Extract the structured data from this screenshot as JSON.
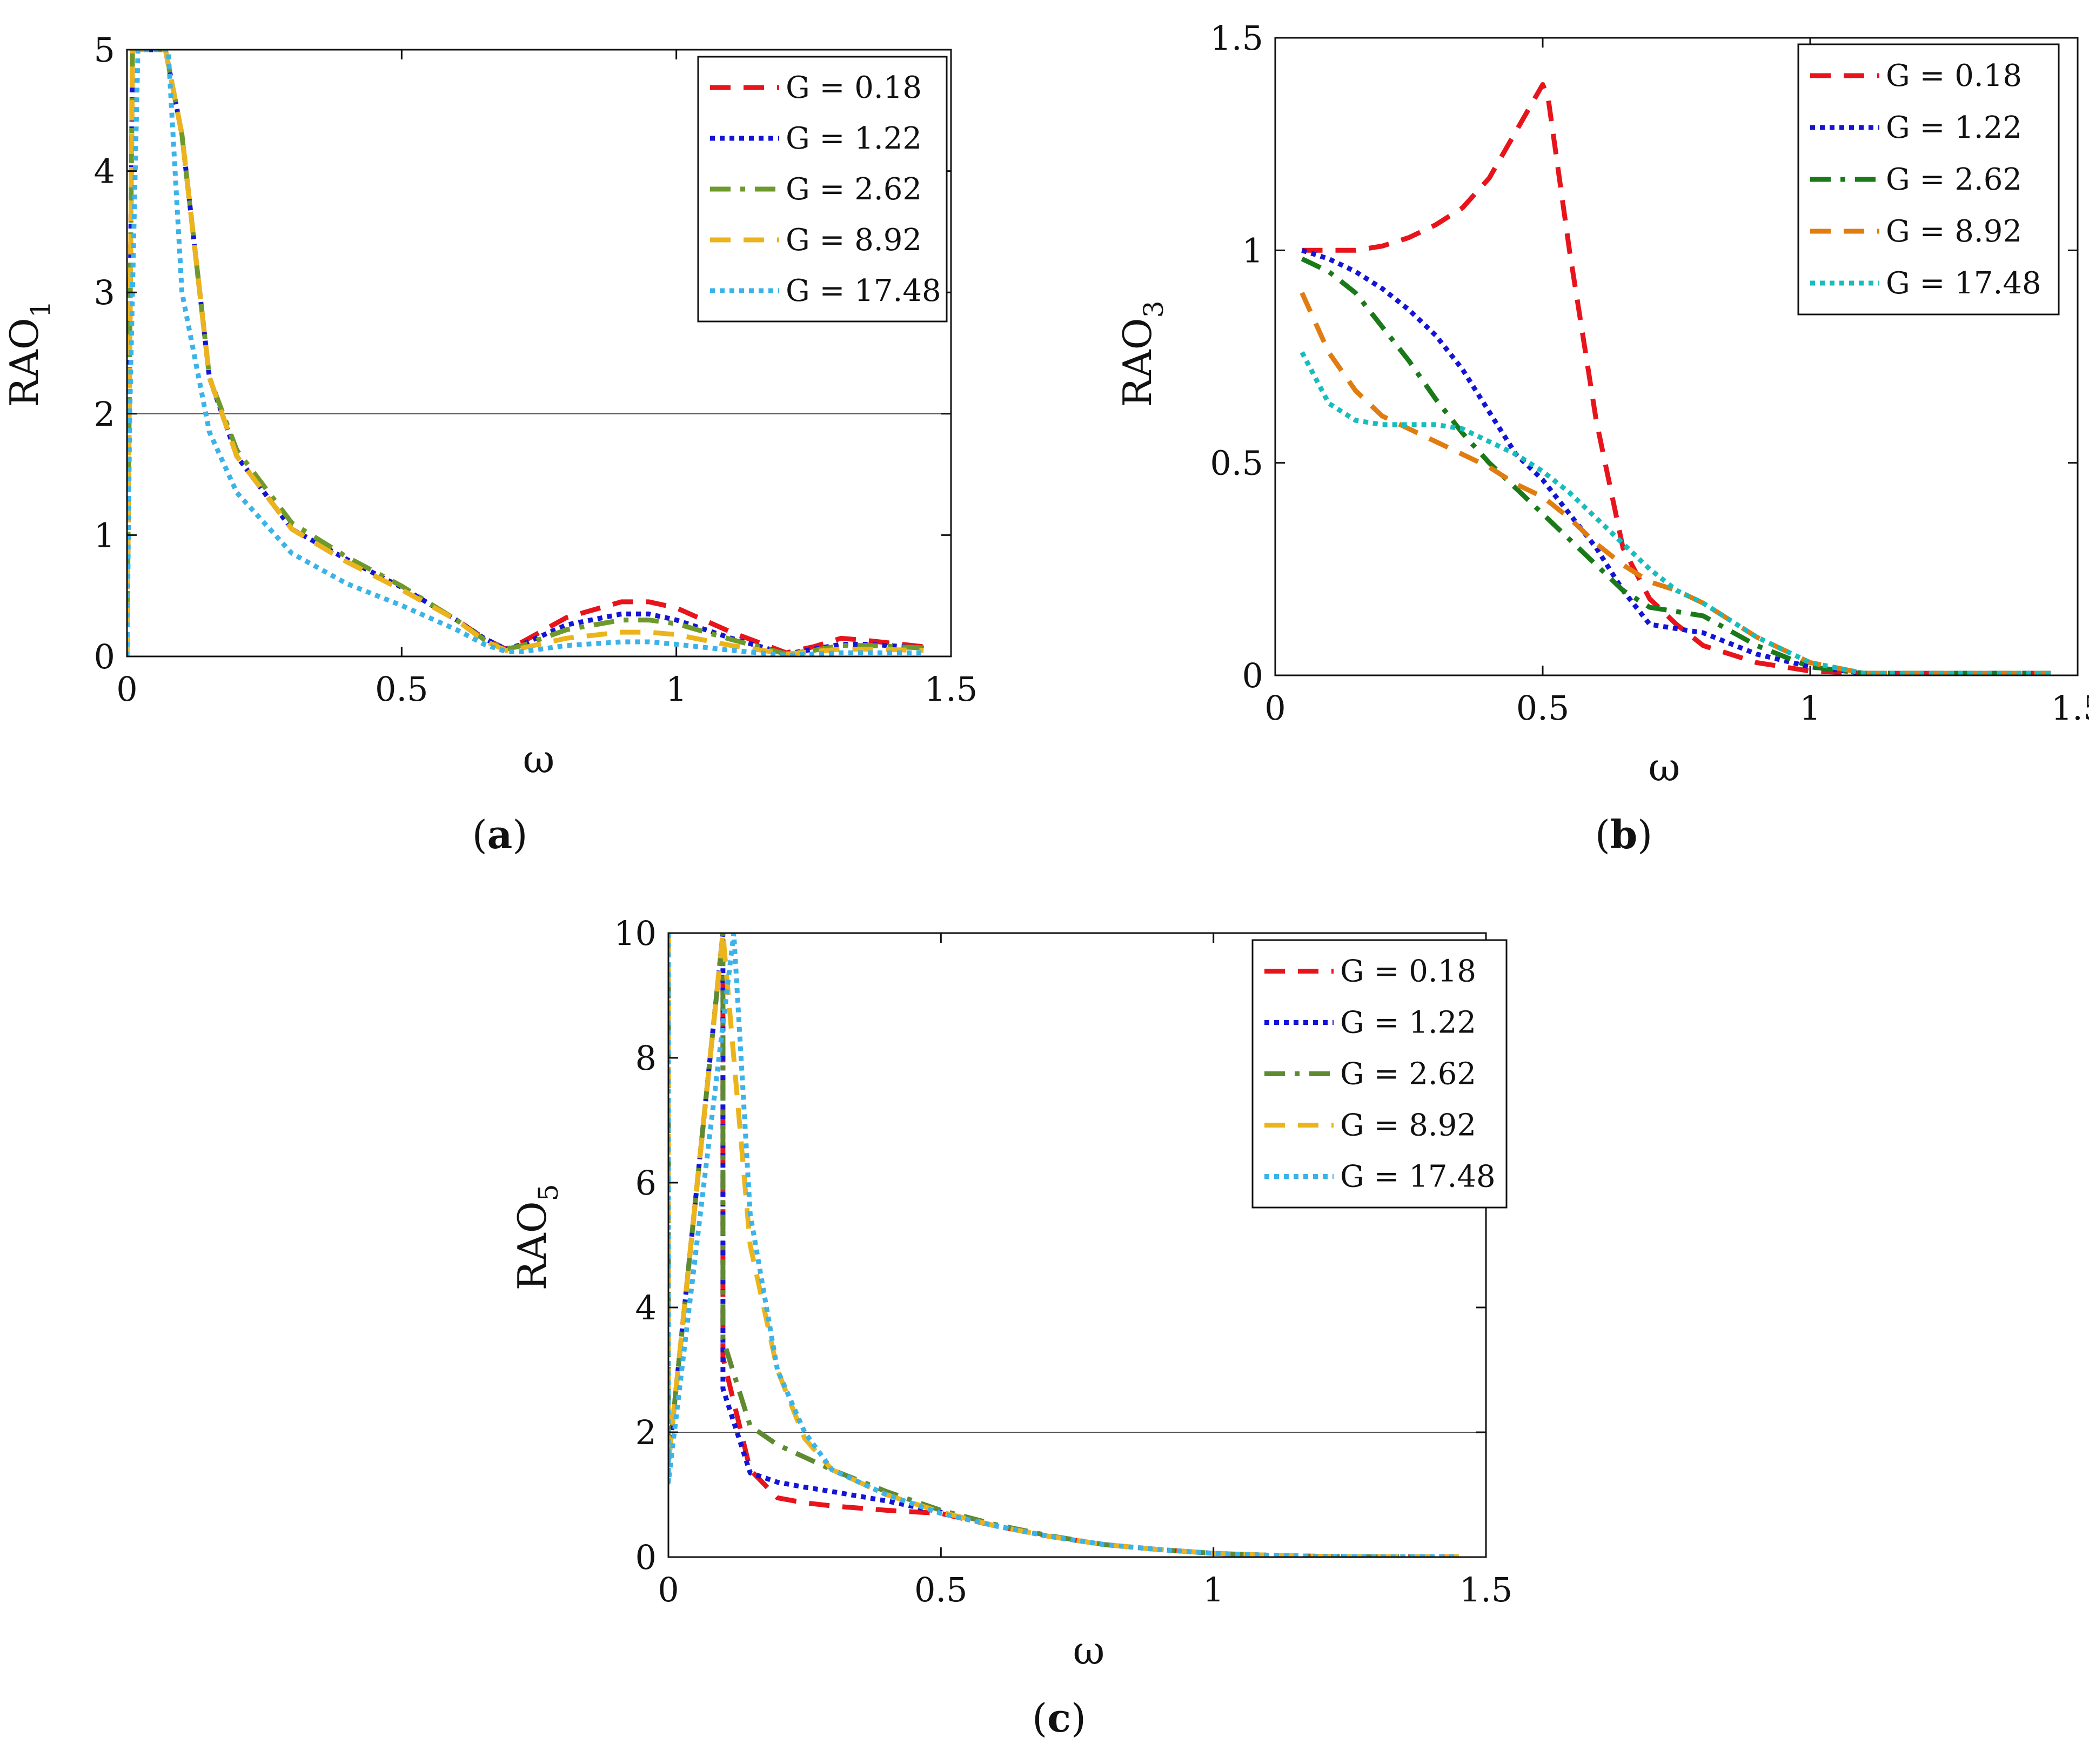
{
  "chart_data": [
    {
      "id": "a",
      "type": "line",
      "caption_letter": "a",
      "xlabel": "ω",
      "ylabel_main": "RAO",
      "ylabel_sub": "1",
      "xlim": [
        0,
        1.5
      ],
      "ylim": [
        0,
        5
      ],
      "xticks": [
        "0",
        "0.5",
        "1",
        "1.5"
      ],
      "xtick_values": [
        0,
        0.5,
        1,
        1.5
      ],
      "yticks": [
        "0",
        "1",
        "2",
        "3",
        "4",
        "5"
      ],
      "ytick_values": [
        0,
        1,
        2,
        3,
        4,
        5
      ],
      "hline": 2,
      "legend_position": "top-right",
      "series": [
        {
          "name": "G = 0.18",
          "color": "#e8141c",
          "dash": "dash",
          "x": [
            0,
            0.005,
            0.01,
            0.07,
            0.1,
            0.15,
            0.2,
            0.3,
            0.4,
            0.5,
            0.6,
            0.65,
            0.69,
            0.72,
            0.8,
            0.9,
            0.95,
            1.0,
            1.1,
            1.2,
            1.25,
            1.3,
            1.35,
            1.45
          ],
          "y": [
            0,
            2.5,
            5,
            5,
            4.3,
            2.3,
            1.65,
            1.05,
            0.78,
            0.55,
            0.3,
            0.15,
            0.06,
            0.12,
            0.32,
            0.45,
            0.45,
            0.4,
            0.2,
            0.03,
            0.08,
            0.15,
            0.13,
            0.08
          ]
        },
        {
          "name": "G = 1.22",
          "color": "#1414d6",
          "dash": "dot",
          "x": [
            0,
            0.005,
            0.01,
            0.07,
            0.1,
            0.15,
            0.2,
            0.3,
            0.4,
            0.5,
            0.6,
            0.65,
            0.69,
            0.72,
            0.8,
            0.9,
            0.95,
            1.0,
            1.1,
            1.2,
            1.25,
            1.3,
            1.35,
            1.45
          ],
          "y": [
            0,
            2.5,
            5,
            5,
            4.3,
            2.3,
            1.65,
            1.05,
            0.8,
            0.57,
            0.3,
            0.15,
            0.06,
            0.1,
            0.26,
            0.35,
            0.35,
            0.3,
            0.15,
            0.02,
            0.06,
            0.1,
            0.1,
            0.07
          ]
        },
        {
          "name": "G = 2.62",
          "color": "#6e9a2b",
          "dash": "dashdot",
          "x": [
            0,
            0.005,
            0.01,
            0.07,
            0.1,
            0.15,
            0.2,
            0.3,
            0.4,
            0.5,
            0.6,
            0.65,
            0.69,
            0.72,
            0.8,
            0.9,
            0.95,
            1.0,
            1.1,
            1.2,
            1.25,
            1.3,
            1.35,
            1.45
          ],
          "y": [
            0,
            2.5,
            5,
            5,
            4.3,
            2.3,
            1.7,
            1.1,
            0.82,
            0.58,
            0.3,
            0.14,
            0.06,
            0.09,
            0.22,
            0.3,
            0.3,
            0.27,
            0.14,
            0.02,
            0.05,
            0.09,
            0.09,
            0.07
          ]
        },
        {
          "name": "G = 8.92",
          "color": "#ecb41c",
          "dash": "dash",
          "x": [
            0,
            0.005,
            0.01,
            0.07,
            0.1,
            0.15,
            0.2,
            0.3,
            0.4,
            0.5,
            0.6,
            0.65,
            0.69,
            0.72,
            0.8,
            0.9,
            0.95,
            1.0,
            1.1,
            1.2,
            1.25,
            1.3,
            1.35,
            1.45
          ],
          "y": [
            0,
            2.5,
            5,
            5,
            4.3,
            2.3,
            1.65,
            1.05,
            0.78,
            0.55,
            0.3,
            0.13,
            0.05,
            0.07,
            0.15,
            0.2,
            0.2,
            0.18,
            0.09,
            0.02,
            0.04,
            0.06,
            0.06,
            0.05
          ]
        },
        {
          "name": "G = 17.48",
          "color": "#3bb3e8",
          "dash": "dot",
          "x": [
            0,
            0.005,
            0.02,
            0.055,
            0.075,
            0.1,
            0.15,
            0.2,
            0.3,
            0.4,
            0.5,
            0.6,
            0.65,
            0.69,
            0.72,
            0.8,
            0.9,
            0.95,
            1.0,
            1.1,
            1.2,
            1.25,
            1.3,
            1.35,
            1.45
          ],
          "y": [
            0,
            2.0,
            5,
            5,
            5,
            3.0,
            1.85,
            1.35,
            0.85,
            0.6,
            0.42,
            0.22,
            0.1,
            0.04,
            0.04,
            0.09,
            0.12,
            0.12,
            0.1,
            0.05,
            0.01,
            0.02,
            0.03,
            0.03,
            0.03
          ]
        }
      ]
    },
    {
      "id": "b",
      "type": "line",
      "caption_letter": "b",
      "xlabel": "ω",
      "ylabel_main": "RAO",
      "ylabel_sub": "3",
      "xlim": [
        0,
        1.5
      ],
      "ylim": [
        0,
        1.5
      ],
      "xticks": [
        "0",
        "0.5",
        "1",
        "1.5"
      ],
      "xtick_values": [
        0,
        0.5,
        1,
        1.5
      ],
      "yticks": [
        "0",
        "0.5",
        "1",
        "1.5"
      ],
      "ytick_values": [
        0,
        0.5,
        1,
        1.5
      ],
      "legend_position": "top-right",
      "series": [
        {
          "name": "G = 0.18",
          "color": "#e8141c",
          "dash": "dash",
          "x": [
            0.05,
            0.1,
            0.15,
            0.2,
            0.25,
            0.3,
            0.35,
            0.4,
            0.45,
            0.5,
            0.51,
            0.55,
            0.6,
            0.65,
            0.7,
            0.75,
            0.8,
            0.9,
            1.0,
            1.1,
            1.2,
            1.3,
            1.45
          ],
          "y": [
            1.0,
            1.0,
            1.0,
            1.01,
            1.03,
            1.06,
            1.1,
            1.17,
            1.28,
            1.39,
            1.36,
            1.0,
            0.6,
            0.3,
            0.18,
            0.12,
            0.07,
            0.03,
            0.01,
            0.005,
            0.005,
            0.005,
            0.005
          ]
        },
        {
          "name": "G = 1.22",
          "color": "#1414d6",
          "dash": "dot",
          "x": [
            0.05,
            0.1,
            0.15,
            0.2,
            0.25,
            0.3,
            0.35,
            0.4,
            0.45,
            0.5,
            0.55,
            0.6,
            0.65,
            0.7,
            0.75,
            0.8,
            0.9,
            1.0,
            1.1,
            1.2,
            1.3,
            1.45
          ],
          "y": [
            1.0,
            0.98,
            0.95,
            0.91,
            0.86,
            0.8,
            0.72,
            0.62,
            0.52,
            0.46,
            0.38,
            0.3,
            0.2,
            0.12,
            0.11,
            0.1,
            0.05,
            0.02,
            0.005,
            0.005,
            0.005,
            0.005
          ]
        },
        {
          "name": "G = 2.62",
          "color": "#1a7a1a",
          "dash": "dashdot",
          "x": [
            0.05,
            0.1,
            0.15,
            0.2,
            0.25,
            0.3,
            0.35,
            0.4,
            0.45,
            0.5,
            0.55,
            0.6,
            0.65,
            0.7,
            0.75,
            0.8,
            0.9,
            1.0,
            1.1,
            1.2,
            1.3,
            1.45
          ],
          "y": [
            0.98,
            0.95,
            0.9,
            0.82,
            0.74,
            0.65,
            0.57,
            0.5,
            0.44,
            0.38,
            0.32,
            0.26,
            0.2,
            0.16,
            0.15,
            0.14,
            0.07,
            0.02,
            0.005,
            0.005,
            0.005,
            0.005
          ]
        },
        {
          "name": "G = 8.92",
          "color": "#e07c10",
          "dash": "dash",
          "x": [
            0.05,
            0.1,
            0.15,
            0.2,
            0.25,
            0.3,
            0.35,
            0.4,
            0.45,
            0.5,
            0.55,
            0.6,
            0.65,
            0.7,
            0.75,
            0.8,
            0.9,
            1.0,
            1.1,
            1.2,
            1.3,
            1.45
          ],
          "y": [
            0.9,
            0.76,
            0.67,
            0.61,
            0.58,
            0.55,
            0.52,
            0.49,
            0.45,
            0.42,
            0.37,
            0.31,
            0.26,
            0.22,
            0.2,
            0.17,
            0.09,
            0.03,
            0.005,
            0.005,
            0.005,
            0.005
          ]
        },
        {
          "name": "G = 17.48",
          "color": "#17bdbd",
          "dash": "dot",
          "x": [
            0.05,
            0.1,
            0.15,
            0.2,
            0.25,
            0.3,
            0.35,
            0.4,
            0.45,
            0.5,
            0.55,
            0.6,
            0.65,
            0.7,
            0.75,
            0.8,
            0.9,
            1.0,
            1.1,
            1.2,
            1.3,
            1.45
          ],
          "y": [
            0.76,
            0.64,
            0.6,
            0.59,
            0.59,
            0.59,
            0.58,
            0.55,
            0.52,
            0.48,
            0.43,
            0.37,
            0.31,
            0.25,
            0.2,
            0.17,
            0.09,
            0.03,
            0.005,
            0.005,
            0.005,
            0.005
          ]
        }
      ]
    },
    {
      "id": "c",
      "type": "line",
      "caption_letter": "c",
      "xlabel": "ω",
      "ylabel_main": "RAO",
      "ylabel_sub": "5",
      "xlim": [
        0,
        1.5
      ],
      "ylim": [
        0,
        10
      ],
      "xticks": [
        "0",
        "0.5",
        "1",
        "1.5"
      ],
      "xtick_values": [
        0,
        0.5,
        1,
        1.5
      ],
      "yticks": [
        "0",
        "2",
        "4",
        "6",
        "8",
        "10"
      ],
      "ytick_values": [
        0,
        2,
        4,
        6,
        8,
        10
      ],
      "hline": 2,
      "legend_position": "top-right",
      "series": [
        {
          "name": "G = 0.18",
          "color": "#e8141c",
          "dash": "dash",
          "x": [
            0,
            0,
            0.1,
            0.1,
            0.15,
            0.2,
            0.25,
            0.3,
            0.4,
            0.5,
            0.6,
            0.7,
            0.8,
            0.9,
            1.0,
            1.1,
            1.2,
            1.3,
            1.45
          ],
          "y": [
            10,
            1.5,
            10,
            3.2,
            1.4,
            0.95,
            0.87,
            0.82,
            0.75,
            0.7,
            0.5,
            0.33,
            0.2,
            0.12,
            0.06,
            0.03,
            0.01,
            0.005,
            0.005
          ]
        },
        {
          "name": "G = 1.22",
          "color": "#1414d6",
          "dash": "dot",
          "x": [
            0,
            0,
            0.1,
            0.1,
            0.15,
            0.2,
            0.25,
            0.3,
            0.4,
            0.5,
            0.6,
            0.7,
            0.8,
            0.9,
            1.0,
            1.1,
            1.2,
            1.3,
            1.45
          ],
          "y": [
            10,
            1.5,
            10,
            2.7,
            1.35,
            1.2,
            1.12,
            1.05,
            0.9,
            0.72,
            0.5,
            0.33,
            0.2,
            0.12,
            0.06,
            0.03,
            0.01,
            0.005,
            0.005
          ]
        },
        {
          "name": "G = 2.62",
          "color": "#5e8a32",
          "dash": "dashdot",
          "x": [
            0,
            0,
            0.1,
            0.1,
            0.15,
            0.2,
            0.25,
            0.3,
            0.4,
            0.5,
            0.6,
            0.7,
            0.8,
            0.9,
            1.0,
            1.1,
            1.2,
            1.3,
            1.45
          ],
          "y": [
            10,
            1.5,
            10,
            3.5,
            2.1,
            1.8,
            1.6,
            1.4,
            1.05,
            0.75,
            0.52,
            0.34,
            0.2,
            0.12,
            0.06,
            0.03,
            0.01,
            0.005,
            0.005
          ]
        },
        {
          "name": "G = 8.92",
          "color": "#ecb41c",
          "dash": "dash",
          "x": [
            0,
            0,
            0.1,
            0.12,
            0.15,
            0.2,
            0.25,
            0.3,
            0.4,
            0.5,
            0.6,
            0.7,
            0.8,
            0.9,
            1.0,
            1.1,
            1.2,
            1.3,
            1.45
          ],
          "y": [
            10,
            1.5,
            10,
            8.0,
            5.0,
            3.0,
            1.9,
            1.4,
            1.0,
            0.72,
            0.5,
            0.33,
            0.2,
            0.12,
            0.06,
            0.03,
            0.01,
            0.005,
            0.005
          ]
        },
        {
          "name": "G = 17.48",
          "color": "#3bb3e8",
          "dash": "dot",
          "x": [
            0,
            0,
            0.12,
            0.15,
            0.2,
            0.25,
            0.3,
            0.4,
            0.5,
            0.6,
            0.7,
            0.8,
            0.9,
            1.0,
            1.1,
            1.2,
            1.3,
            1.45
          ],
          "y": [
            10,
            1.2,
            10,
            5.5,
            3.0,
            2.0,
            1.4,
            1.0,
            0.7,
            0.5,
            0.33,
            0.2,
            0.12,
            0.06,
            0.03,
            0.01,
            0.005,
            0.005
          ]
        }
      ]
    }
  ]
}
